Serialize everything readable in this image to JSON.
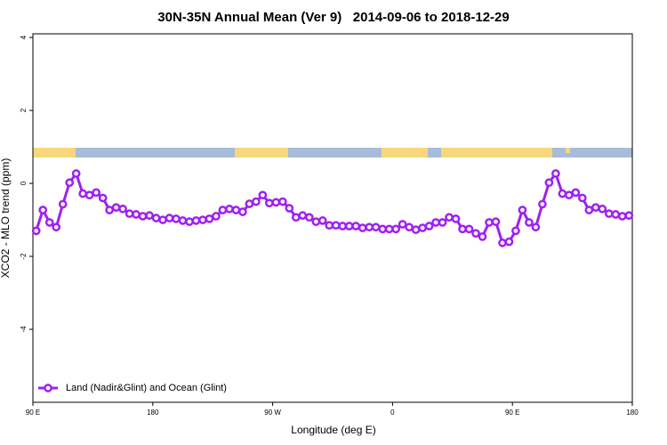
{
  "chart_data": {
    "type": "line",
    "title": "30N-35N Annual Mean (Ver 9)   2014-09-06 to 2018-12-29",
    "xlabel": "Longitude (deg E)",
    "ylabel": "XCO2 - MLO trend (ppm)",
    "xlim": [
      90,
      540
    ],
    "xticks": [
      {
        "value": 90,
        "label": "90 E"
      },
      180,
      {
        "value": 270,
        "label": "90 W"
      },
      {
        "value": 360,
        "label": "0"
      },
      {
        "value": 450,
        "label": "90 E"
      },
      {
        "value": 540,
        "label": "180"
      }
    ],
    "ylim": [
      -6,
      4.1
    ],
    "yticks": [
      4,
      2,
      0,
      -2,
      -4
    ],
    "legend": "bottom-left",
    "series": [
      {
        "name": "Land (Nadir&Glint) and Ocean (Glint)",
        "color": "#a020f0",
        "x": [
          92.5,
          97.5,
          102.5,
          107.5,
          112.5,
          117.5,
          122.5,
          127.5,
          132.5,
          137.5,
          142.5,
          147.5,
          152.5,
          157.5,
          162.5,
          167.5,
          172.5,
          177.5,
          182.5,
          187.5,
          192.5,
          197.5,
          202.5,
          207.5,
          212.5,
          217.5,
          222.5,
          227.5,
          232.5,
          237.5,
          242.5,
          247.5,
          252.5,
          257.5,
          262.5,
          267.5,
          272.5,
          277.5,
          282.5,
          287.5,
          292.5,
          297.5,
          302.5,
          307.5,
          312.5,
          317.5,
          322.5,
          327.5,
          332.5,
          337.5,
          342.5,
          347.5,
          352.5,
          357.5,
          362.5,
          367.5,
          372.5,
          377.5,
          382.5,
          387.5,
          392.5,
          397.5,
          402.5,
          407.5,
          412.5,
          417.5,
          422.5,
          427.5,
          432.5,
          437.5,
          442.5,
          447.5,
          452.5,
          457.5,
          462.5,
          467.5,
          472.5,
          477.5,
          482.5,
          487.5,
          492.5,
          497.5,
          502.5,
          507.5,
          512.5,
          517.5,
          522.5,
          527.5,
          532.5,
          537.5
        ],
        "values": [
          -1.3,
          -0.73,
          -1.07,
          -1.2,
          -0.57,
          0.02,
          0.27,
          -0.28,
          -0.32,
          -0.25,
          -0.4,
          -0.73,
          -0.66,
          -0.7,
          -0.83,
          -0.85,
          -0.9,
          -0.88,
          -0.95,
          -1.0,
          -0.95,
          -0.97,
          -1.02,
          -1.05,
          -1.02,
          -1.0,
          -0.97,
          -0.9,
          -0.73,
          -0.7,
          -0.73,
          -0.78,
          -0.56,
          -0.5,
          -0.32,
          -0.54,
          -0.52,
          -0.5,
          -0.68,
          -0.93,
          -0.88,
          -0.93,
          -1.05,
          -1.02,
          -1.15,
          -1.15,
          -1.17,
          -1.17,
          -1.17,
          -1.22,
          -1.2,
          -1.2,
          -1.25,
          -1.25,
          -1.25,
          -1.12,
          -1.2,
          -1.27,
          -1.22,
          -1.17,
          -1.07,
          -1.07,
          -0.93,
          -0.97,
          -1.25,
          -1.25,
          -1.37,
          -1.46,
          -1.07,
          -1.05,
          -1.63,
          -1.6,
          -1.3,
          -0.73,
          -1.07,
          -1.2,
          -0.57,
          0.02,
          0.27,
          -0.28,
          -0.32,
          -0.25,
          -0.4,
          -0.73,
          -0.66,
          -0.7,
          -0.83,
          -0.85,
          -0.9,
          -0.88
        ]
      }
    ]
  }
}
